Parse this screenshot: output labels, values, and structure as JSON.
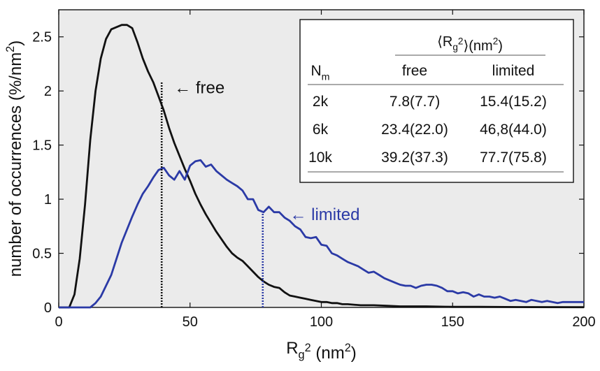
{
  "chart_data": {
    "type": "line",
    "title": "",
    "xlabel": "R_g^2 (nm^2)",
    "ylabel": "number of occurrences (%/nm^2)",
    "xlim": [
      0,
      200
    ],
    "ylim": [
      0,
      2.75
    ],
    "xticks": [
      0,
      50,
      100,
      150,
      200
    ],
    "xtick_labels": [
      "0",
      "50",
      "100",
      "150",
      "200"
    ],
    "yticks": [
      0,
      0.5,
      1,
      1.5,
      2,
      2.5
    ],
    "ytick_labels": [
      "0",
      "0.5",
      "1",
      "1.5",
      "2",
      "2.5"
    ],
    "grid": false,
    "background": "#ebebeb",
    "series": [
      {
        "name": "free",
        "color": "#111111",
        "points": [
          [
            0,
            0
          ],
          [
            4,
            0
          ],
          [
            6,
            0.12
          ],
          [
            8,
            0.45
          ],
          [
            10,
            0.95
          ],
          [
            12,
            1.55
          ],
          [
            14,
            2.0
          ],
          [
            16,
            2.3
          ],
          [
            18,
            2.48
          ],
          [
            20,
            2.57
          ],
          [
            22,
            2.59
          ],
          [
            24,
            2.61
          ],
          [
            26,
            2.61
          ],
          [
            28,
            2.58
          ],
          [
            30,
            2.45
          ],
          [
            32,
            2.3
          ],
          [
            34,
            2.18
          ],
          [
            36,
            2.08
          ],
          [
            38,
            1.95
          ],
          [
            40,
            1.82
          ],
          [
            42,
            1.66
          ],
          [
            44,
            1.52
          ],
          [
            46,
            1.4
          ],
          [
            48,
            1.28
          ],
          [
            50,
            1.17
          ],
          [
            52,
            1.05
          ],
          [
            54,
            0.95
          ],
          [
            56,
            0.86
          ],
          [
            58,
            0.78
          ],
          [
            60,
            0.7
          ],
          [
            62,
            0.63
          ],
          [
            64,
            0.56
          ],
          [
            66,
            0.5
          ],
          [
            68,
            0.46
          ],
          [
            70,
            0.43
          ],
          [
            72,
            0.38
          ],
          [
            74,
            0.33
          ],
          [
            76,
            0.28
          ],
          [
            78,
            0.24
          ],
          [
            80,
            0.21
          ],
          [
            82,
            0.19
          ],
          [
            84,
            0.18
          ],
          [
            86,
            0.14
          ],
          [
            88,
            0.11
          ],
          [
            90,
            0.1
          ],
          [
            92,
            0.09
          ],
          [
            94,
            0.08
          ],
          [
            96,
            0.07
          ],
          [
            98,
            0.06
          ],
          [
            100,
            0.05
          ],
          [
            102,
            0.05
          ],
          [
            104,
            0.04
          ],
          [
            106,
            0.04
          ],
          [
            108,
            0.03
          ],
          [
            110,
            0.03
          ],
          [
            115,
            0.02
          ],
          [
            120,
            0.02
          ],
          [
            125,
            0.015
          ],
          [
            130,
            0.01
          ],
          [
            140,
            0.01
          ],
          [
            150,
            0.005
          ],
          [
            160,
            0.005
          ],
          [
            175,
            0.003
          ],
          [
            200,
            0.002
          ]
        ]
      },
      {
        "name": "limited",
        "color": "#2b3aa6",
        "points": [
          [
            0,
            0
          ],
          [
            12,
            0
          ],
          [
            14,
            0.04
          ],
          [
            16,
            0.1
          ],
          [
            18,
            0.2
          ],
          [
            20,
            0.3
          ],
          [
            22,
            0.45
          ],
          [
            24,
            0.6
          ],
          [
            26,
            0.72
          ],
          [
            28,
            0.84
          ],
          [
            30,
            0.95
          ],
          [
            32,
            1.05
          ],
          [
            34,
            1.12
          ],
          [
            36,
            1.2
          ],
          [
            38,
            1.27
          ],
          [
            40,
            1.29
          ],
          [
            42,
            1.22
          ],
          [
            44,
            1.18
          ],
          [
            46,
            1.26
          ],
          [
            48,
            1.18
          ],
          [
            50,
            1.31
          ],
          [
            52,
            1.35
          ],
          [
            54,
            1.36
          ],
          [
            56,
            1.3
          ],
          [
            58,
            1.32
          ],
          [
            60,
            1.26
          ],
          [
            62,
            1.22
          ],
          [
            64,
            1.18
          ],
          [
            66,
            1.15
          ],
          [
            68,
            1.12
          ],
          [
            70,
            1.08
          ],
          [
            72,
            1.0
          ],
          [
            74,
            1.0
          ],
          [
            76,
            0.9
          ],
          [
            78,
            0.88
          ],
          [
            80,
            0.93
          ],
          [
            82,
            0.88
          ],
          [
            84,
            0.88
          ],
          [
            86,
            0.83
          ],
          [
            88,
            0.8
          ],
          [
            90,
            0.75
          ],
          [
            92,
            0.72
          ],
          [
            94,
            0.65
          ],
          [
            96,
            0.64
          ],
          [
            98,
            0.65
          ],
          [
            100,
            0.58
          ],
          [
            102,
            0.57
          ],
          [
            104,
            0.5
          ],
          [
            106,
            0.48
          ],
          [
            108,
            0.45
          ],
          [
            110,
            0.42
          ],
          [
            112,
            0.4
          ],
          [
            114,
            0.38
          ],
          [
            116,
            0.35
          ],
          [
            118,
            0.32
          ],
          [
            120,
            0.33
          ],
          [
            122,
            0.3
          ],
          [
            124,
            0.27
          ],
          [
            126,
            0.25
          ],
          [
            128,
            0.23
          ],
          [
            130,
            0.21
          ],
          [
            132,
            0.2
          ],
          [
            134,
            0.2
          ],
          [
            136,
            0.18
          ],
          [
            138,
            0.2
          ],
          [
            140,
            0.21
          ],
          [
            142,
            0.21
          ],
          [
            144,
            0.2
          ],
          [
            146,
            0.18
          ],
          [
            148,
            0.15
          ],
          [
            150,
            0.15
          ],
          [
            152,
            0.13
          ],
          [
            154,
            0.14
          ],
          [
            156,
            0.13
          ],
          [
            158,
            0.1
          ],
          [
            160,
            0.12
          ],
          [
            162,
            0.1
          ],
          [
            164,
            0.1
          ],
          [
            166,
            0.09
          ],
          [
            168,
            0.1
          ],
          [
            170,
            0.08
          ],
          [
            172,
            0.06
          ],
          [
            174,
            0.07
          ],
          [
            176,
            0.06
          ],
          [
            178,
            0.05
          ],
          [
            180,
            0.07
          ],
          [
            182,
            0.06
          ],
          [
            184,
            0.05
          ],
          [
            186,
            0.06
          ],
          [
            188,
            0.05
          ],
          [
            190,
            0.04
          ],
          [
            192,
            0.05
          ],
          [
            194,
            0.05
          ],
          [
            196,
            0.05
          ],
          [
            198,
            0.05
          ],
          [
            200,
            0.05
          ]
        ]
      }
    ],
    "markers": [
      {
        "series": "free",
        "x": 39.2,
        "label": "← free",
        "label_x": 44,
        "label_y": 2.03
      },
      {
        "series": "limited",
        "x": 77.7,
        "label": "← limited",
        "label_x": 88,
        "label_y": 0.86
      }
    ],
    "inset_table": {
      "header_group": "⟨R_g^2⟩(nm^2)",
      "columns": [
        "N_m",
        "free",
        "limited"
      ],
      "rows": [
        [
          "2k",
          "7.8(7.7)",
          "15.4(15.2)"
        ],
        [
          "6k",
          "23.4(22.0)",
          "46,8(44.0)"
        ],
        [
          "10k",
          "39.2(37.3)",
          "77.7(75.8)"
        ]
      ]
    }
  }
}
